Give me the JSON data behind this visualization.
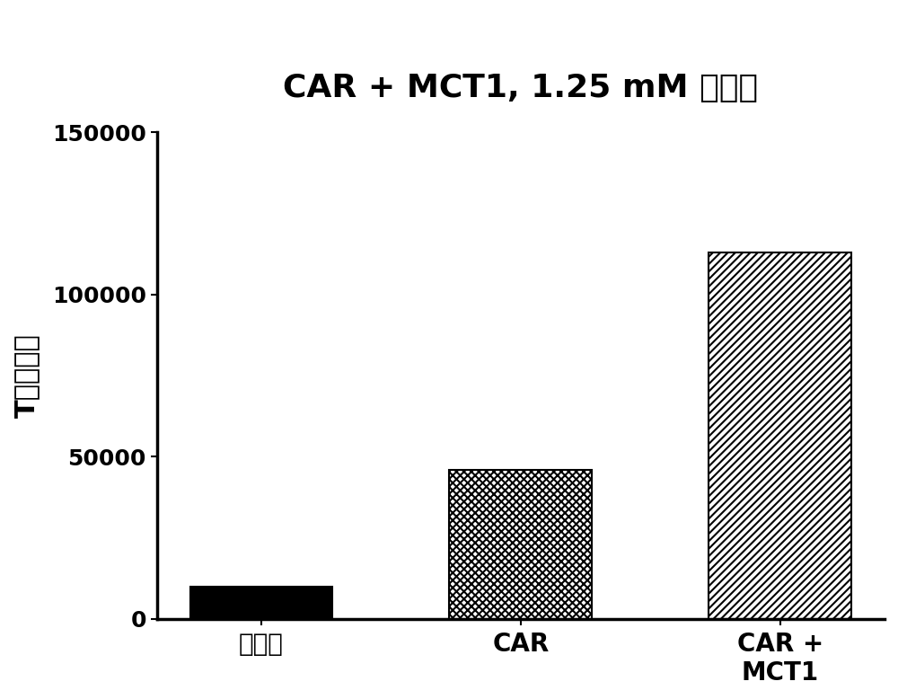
{
  "title_bold": "CAR + MCT1, 1.25 mM ",
  "title_chinese": "葫萄糖",
  "categories": [
    "模拟物",
    "CAR",
    "CAR +\nMCT1"
  ],
  "values": [
    10000,
    46000,
    113000
  ],
  "ylabel": "T细胞计数",
  "ylim": [
    0,
    150000
  ],
  "yticks": [
    0,
    50000,
    100000,
    150000
  ],
  "bar_width": 0.55,
  "bg_color": "#ffffff",
  "title_fontsize": 26,
  "ylabel_fontsize": 22,
  "ytick_fontsize": 18,
  "xtick_fontsize": 20,
  "hatch_bar2": "xxxx",
  "hatch_bar3": "////"
}
